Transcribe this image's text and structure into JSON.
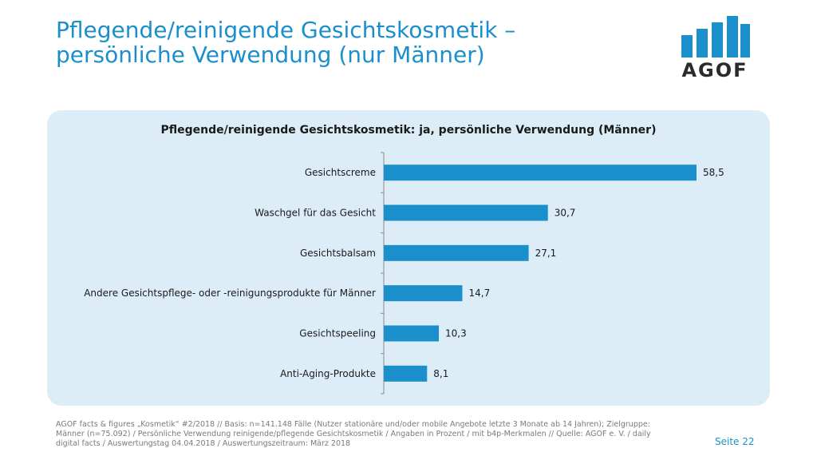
{
  "header": {
    "title_line1": "Pflegende/reinigende Gesichtskosmetik –",
    "title_line2": "persönliche Verwendung (nur Männer)"
  },
  "logo": {
    "text": "AGOF",
    "color": "#1a8fcb"
  },
  "chart_data": {
    "type": "bar",
    "orientation": "horizontal",
    "title": "Pflegende/reinigende Gesichtskosmetik: ja, persönliche Verwendung (Männer)",
    "categories": [
      "Gesichtscreme",
      "Waschgel für das Gesicht",
      "Gesichtsbalsam",
      "Andere Gesichtspflege- oder -reinigungsprodukte für Männer",
      "Gesichtspeeling",
      "Anti-Aging-Produkte"
    ],
    "values": [
      58.5,
      30.7,
      27.1,
      14.7,
      10.3,
      8.1
    ],
    "value_labels": [
      "58,5",
      "30,7",
      "27,1",
      "14,7",
      "10,3",
      "8,1"
    ],
    "xlim": [
      0,
      60
    ],
    "bar_color": "#1a8fcb",
    "grid": false
  },
  "footnote": {
    "line1": "AGOF facts & figures „Kosmetik“ #2/2018 // Basis: n=141.148 Fälle (Nutzer stationäre und/oder mobile Angebote letzte 3 Monate ab 14 Jahren); Zielgruppe:",
    "line2": "Männer (n=75.092)  / Persönliche Verwendung reinigende/pflegende Gesichtskosmetik / Angaben in Prozent / mit b4p-Merkmalen // Quelle: AGOF e. V. / daily",
    "line3": "digital facts / Auswertungstag 04.04.2018 / Auswertungszeitraum: März 2018"
  },
  "page_label": "Seite 22"
}
